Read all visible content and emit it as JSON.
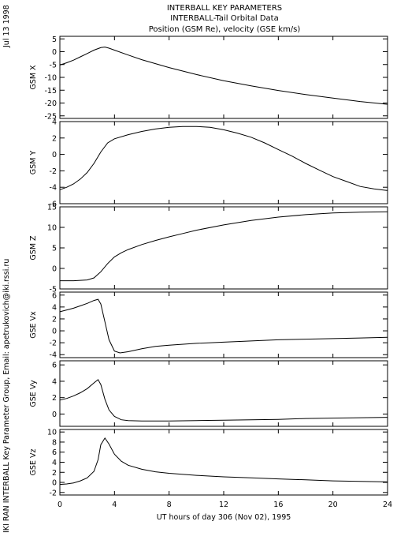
{
  "header": {
    "title_lines": [
      "INTERBALL KEY PARAMETERS",
      "INTERBALL-Tail Orbital Data",
      "Position (GSM Re), velocity (GSE km/s)"
    ],
    "date_stamp": "Jul 13 1998",
    "credit": "IKI RAN INTERBALL Key Parameter Group, Email: apetrukovich@iki.rssi.ru"
  },
  "chart_data": {
    "type": "line",
    "xlabel": "UT hours of day 306 (Nov 02), 1995",
    "xlim": [
      0,
      24
    ],
    "xticks": [
      "0",
      "4",
      "8",
      "12",
      "16",
      "20",
      "24"
    ],
    "panels": [
      {
        "ylabel": "GSM X",
        "ylim": [
          -26,
          6
        ],
        "yticks": [
          "5",
          "0",
          "-5",
          "-10",
          "-15",
          "-20",
          "-25"
        ],
        "x": [
          0,
          0.5,
          1,
          1.5,
          2,
          2.5,
          3,
          3.3,
          3.6,
          4,
          5,
          6,
          8,
          10,
          12,
          14,
          16,
          18,
          20,
          22,
          24
        ],
        "values": [
          -5.2,
          -4.3,
          -3.3,
          -2,
          -0.7,
          0.6,
          1.6,
          1.8,
          1.4,
          0.6,
          -1.3,
          -3.1,
          -6.2,
          -8.9,
          -11.3,
          -13.3,
          -15.1,
          -16.7,
          -18.1,
          -19.4,
          -20.5
        ]
      },
      {
        "ylabel": "GSM Y",
        "ylim": [
          -6,
          4
        ],
        "yticks": [
          "4",
          "2",
          "0",
          "-2",
          "-4",
          "-6"
        ],
        "x": [
          0,
          0.5,
          1,
          1.5,
          2,
          2.5,
          3,
          3.5,
          4,
          5,
          6,
          7,
          8,
          9,
          10,
          11,
          12,
          13,
          14,
          15,
          16,
          17,
          18,
          19,
          20,
          21,
          22,
          23,
          24
        ],
        "values": [
          -4.3,
          -4.0,
          -3.6,
          -3.0,
          -2.2,
          -1.1,
          0.3,
          1.4,
          1.9,
          2.4,
          2.8,
          3.1,
          3.3,
          3.4,
          3.4,
          3.3,
          3.0,
          2.6,
          2.1,
          1.4,
          0.6,
          -0.2,
          -1.1,
          -1.9,
          -2.7,
          -3.3,
          -3.9,
          -4.2,
          -4.4
        ]
      },
      {
        "ylabel": "GSM Z",
        "ylim": [
          -5,
          15
        ],
        "yticks": [
          "15",
          "10",
          "5",
          "0",
          "-5"
        ],
        "x": [
          0,
          1,
          2,
          2.5,
          3,
          3.5,
          4,
          4.5,
          5,
          6,
          7,
          8,
          9,
          10,
          12,
          14,
          16,
          18,
          20,
          22,
          24
        ],
        "values": [
          -3.0,
          -3.0,
          -2.8,
          -2.3,
          -0.8,
          1.2,
          2.8,
          3.8,
          4.6,
          5.8,
          6.8,
          7.7,
          8.5,
          9.3,
          10.6,
          11.7,
          12.5,
          13.1,
          13.5,
          13.7,
          13.8
        ]
      },
      {
        "ylabel": "GSE Vx",
        "ylim": [
          -4.5,
          6.5
        ],
        "yticks": [
          "6",
          "4",
          "2",
          "0",
          "-2",
          "-4"
        ],
        "x": [
          0,
          0.5,
          1,
          1.5,
          2,
          2.5,
          2.8,
          3.0,
          3.3,
          3.6,
          4.0,
          4.4,
          5,
          6,
          7,
          8,
          10,
          12,
          14,
          16,
          18,
          20,
          22,
          24
        ],
        "values": [
          3.2,
          3.5,
          3.8,
          4.2,
          4.6,
          5.1,
          5.3,
          4.5,
          1.5,
          -1.5,
          -3.4,
          -3.7,
          -3.5,
          -3.0,
          -2.6,
          -2.4,
          -2.1,
          -1.9,
          -1.7,
          -1.5,
          -1.4,
          -1.3,
          -1.2,
          -1.1
        ]
      },
      {
        "ylabel": "GSE Vy",
        "ylim": [
          -1.5,
          6.5
        ],
        "yticks": [
          "6",
          "4",
          "2",
          "0"
        ],
        "x": [
          0,
          0.5,
          1,
          1.5,
          2,
          2.5,
          2.8,
          3.0,
          3.3,
          3.6,
          4.0,
          4.5,
          5,
          6,
          8,
          10,
          12,
          14,
          16,
          18,
          20,
          22,
          24
        ],
        "values": [
          1.7,
          1.9,
          2.2,
          2.6,
          3.1,
          3.8,
          4.2,
          3.6,
          1.8,
          0.5,
          -0.3,
          -0.7,
          -0.8,
          -0.85,
          -0.85,
          -0.8,
          -0.75,
          -0.7,
          -0.65,
          -0.55,
          -0.5,
          -0.45,
          -0.4
        ]
      },
      {
        "ylabel": "GSE Vz",
        "ylim": [
          -2.5,
          10.5
        ],
        "yticks": [
          "10",
          "8",
          "6",
          "4",
          "2",
          "0",
          "-2"
        ],
        "x": [
          0,
          0.5,
          1,
          1.5,
          2,
          2.5,
          2.8,
          3.0,
          3.3,
          3.6,
          4.0,
          4.5,
          5,
          6,
          7,
          8,
          10,
          12,
          14,
          16,
          18,
          20,
          22,
          24
        ],
        "values": [
          -0.4,
          -0.3,
          -0.1,
          0.3,
          0.9,
          2.2,
          4.5,
          7.5,
          8.8,
          7.6,
          5.6,
          4.2,
          3.4,
          2.6,
          2.1,
          1.8,
          1.4,
          1.1,
          0.9,
          0.7,
          0.5,
          0.3,
          0.2,
          0.1
        ]
      }
    ]
  }
}
